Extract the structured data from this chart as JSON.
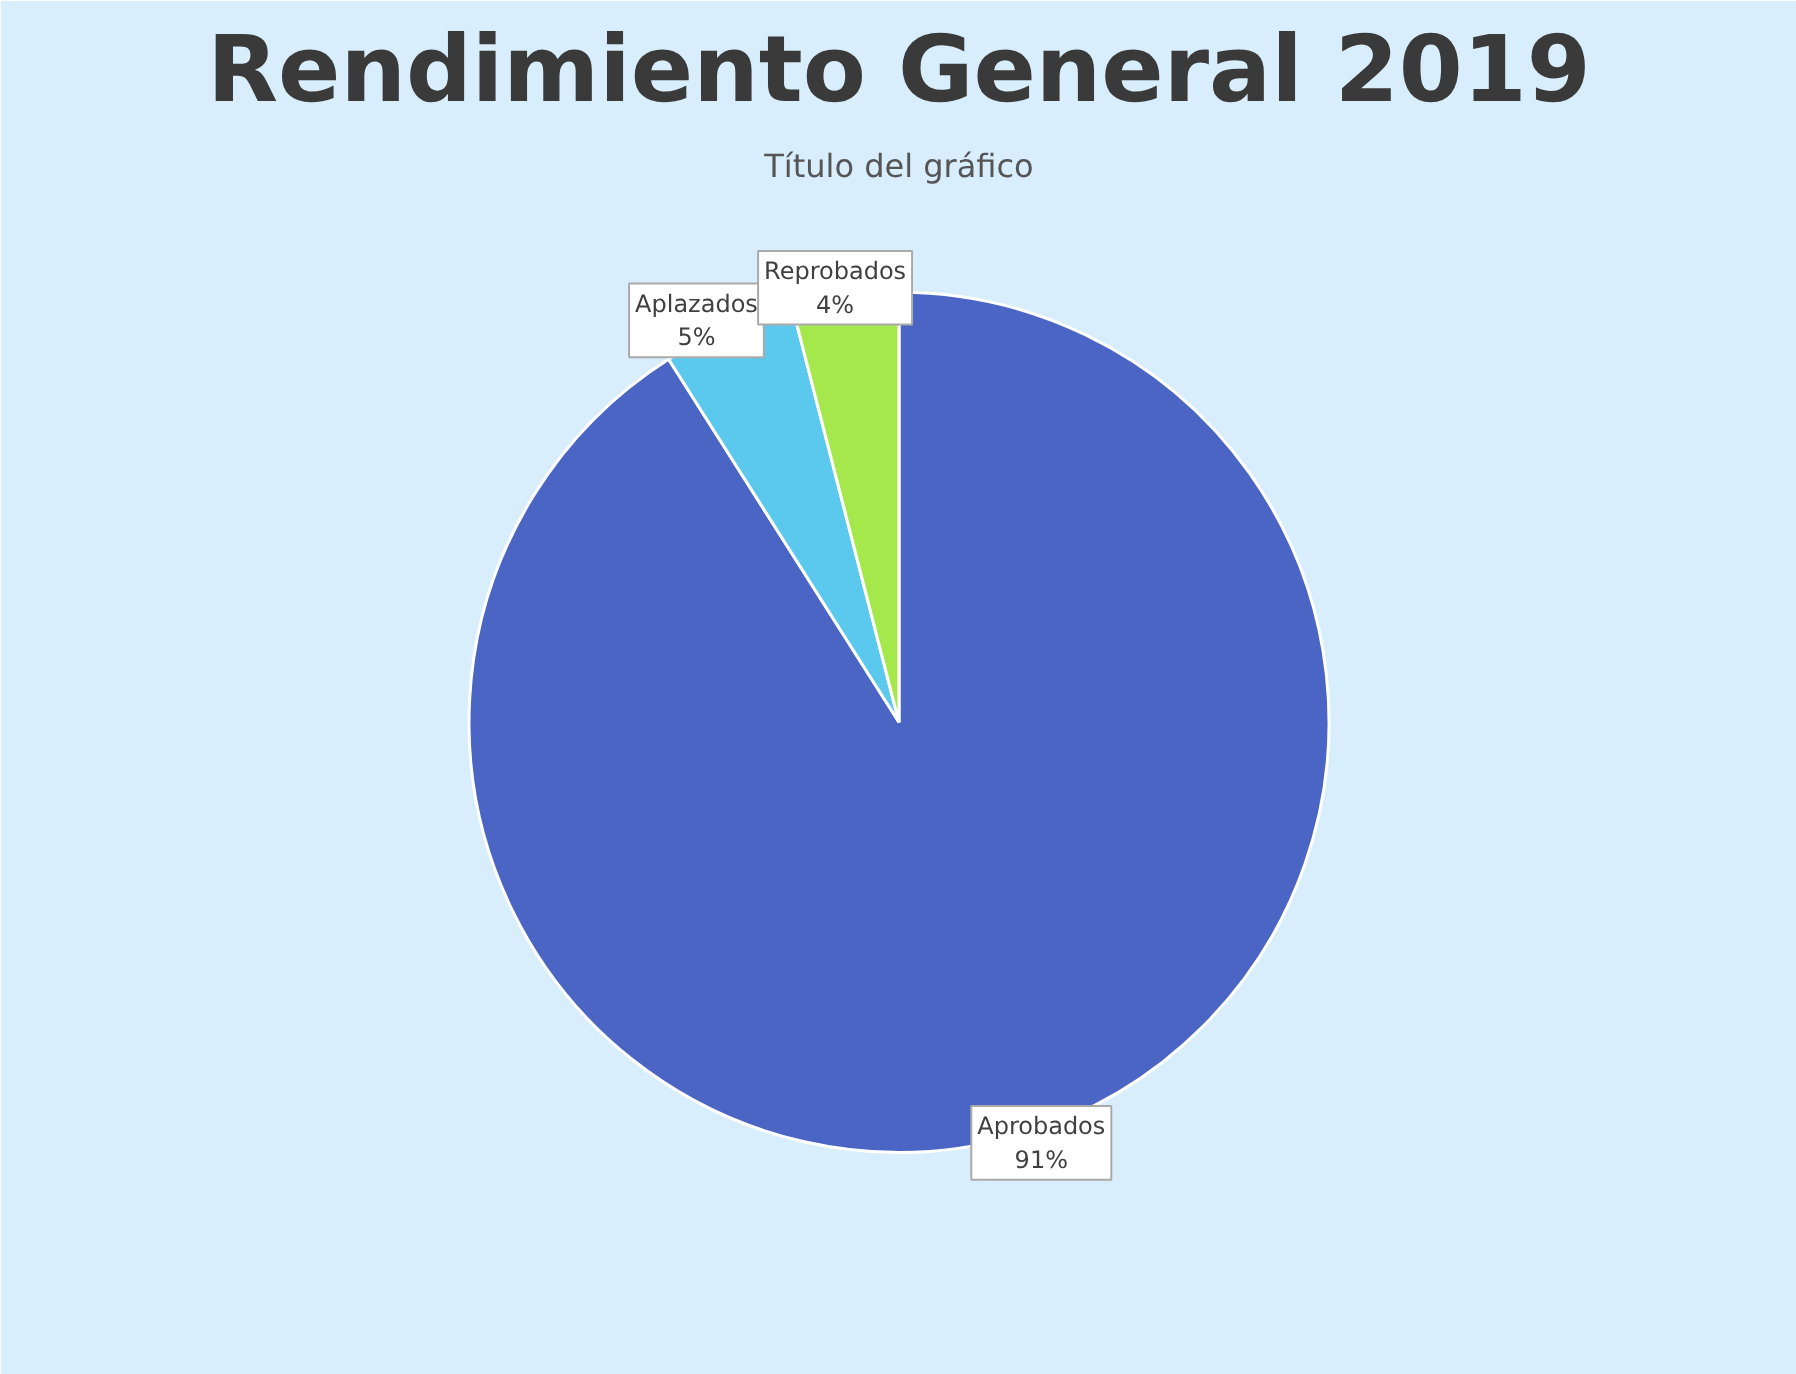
{
  "chart_data": {
    "type": "pie",
    "title": "Rendimiento General 2019",
    "subtitle": "Título del gráfico",
    "categories": [
      "Aprobados",
      "Aplazados",
      "Reprobados"
    ],
    "values": [
      91,
      5,
      4
    ],
    "colors": [
      "#4a65c4",
      "#5bc8ee",
      "#a4e84c"
    ],
    "value_labels": [
      "91%",
      "5%",
      "4%"
    ]
  }
}
